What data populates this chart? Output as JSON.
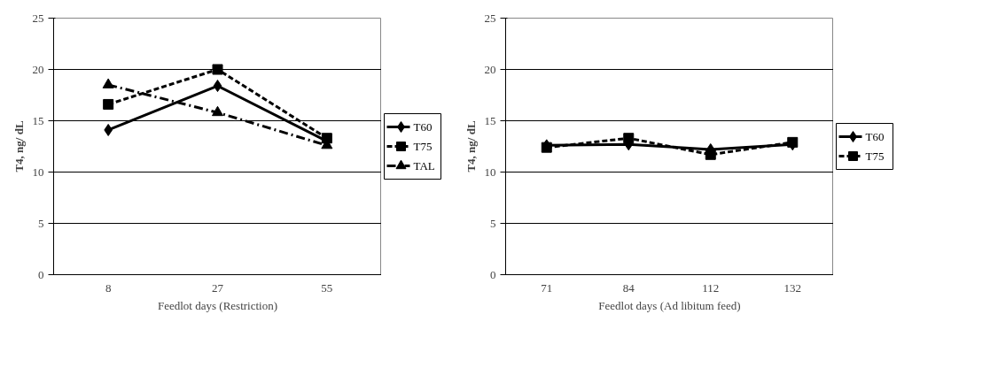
{
  "chart_data": [
    {
      "type": "line",
      "xlabel": "Feedlot days (Restriction)",
      "ylabel": "T4, ng/ dL",
      "categories": [
        "8",
        "27",
        "55"
      ],
      "ylim": [
        0,
        25
      ],
      "yticks": [
        0,
        5,
        10,
        15,
        20,
        25
      ],
      "grid": "y",
      "legend": "right",
      "series": [
        {
          "name": "T60",
          "color": "#000000",
          "values": [
            14.1,
            18.4,
            13.0
          ],
          "marker": "diamond",
          "line_style": "solid"
        },
        {
          "name": "T75",
          "color": "#000000",
          "values": [
            16.6,
            20.0,
            13.3
          ],
          "marker": "square",
          "line_style": "dashed"
        },
        {
          "name": "TAL",
          "color": "#000000",
          "values": [
            18.5,
            15.8,
            12.6
          ],
          "marker": "triangle",
          "line_style": "dashdot"
        }
      ]
    },
    {
      "type": "line",
      "xlabel": "Feedlot days (Ad libitum feed)",
      "ylabel": "T4, ng/ dL",
      "categories": [
        "71",
        "84",
        "112",
        "132"
      ],
      "ylim": [
        0,
        25
      ],
      "yticks": [
        0,
        5,
        10,
        15,
        20,
        25
      ],
      "grid": "y",
      "legend": "right",
      "series": [
        {
          "name": "T60",
          "color": "#000000",
          "values": [
            12.6,
            12.7,
            12.2,
            12.7
          ],
          "marker": "diamond",
          "line_style": "solid"
        },
        {
          "name": "T75",
          "color": "#000000",
          "values": [
            12.4,
            13.3,
            11.7,
            12.9
          ],
          "marker": "square",
          "line_style": "dashed"
        }
      ]
    }
  ]
}
